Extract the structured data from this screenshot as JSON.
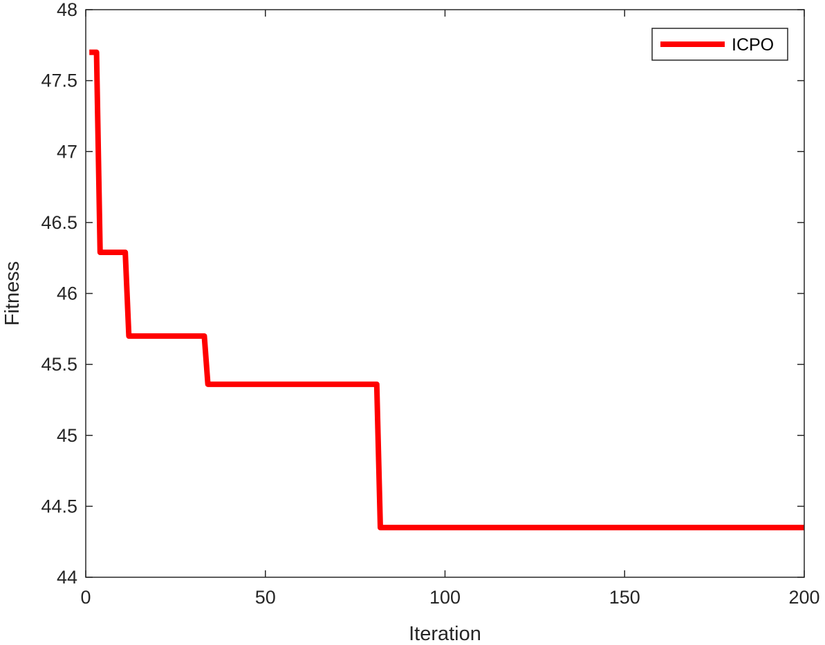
{
  "chart_data": {
    "type": "line",
    "title": "",
    "xlabel": "Iteration",
    "ylabel": "Fitness",
    "xlim": [
      0,
      200
    ],
    "ylim": [
      44,
      48
    ],
    "xticks": [
      0,
      50,
      100,
      150,
      200
    ],
    "yticks": [
      44,
      44.5,
      45,
      45.5,
      46,
      46.5,
      47,
      47.5,
      48
    ],
    "x_tick_labels": [
      "0",
      "50",
      "100",
      "150",
      "200"
    ],
    "y_tick_labels": [
      "44",
      "44.5",
      "45",
      "45.5",
      "46",
      "46.5",
      "47",
      "47.5",
      "48"
    ],
    "grid": false,
    "legend_position": "top-right",
    "series": [
      {
        "name": "ICPO",
        "color": "#ff0000",
        "points": [
          [
            1,
            47.7
          ],
          [
            3,
            47.7
          ],
          [
            4,
            46.29
          ],
          [
            11,
            46.29
          ],
          [
            12,
            45.7
          ],
          [
            33,
            45.7
          ],
          [
            34,
            45.36
          ],
          [
            81,
            45.36
          ],
          [
            82,
            44.35
          ],
          [
            200,
            44.35
          ]
        ]
      }
    ]
  }
}
